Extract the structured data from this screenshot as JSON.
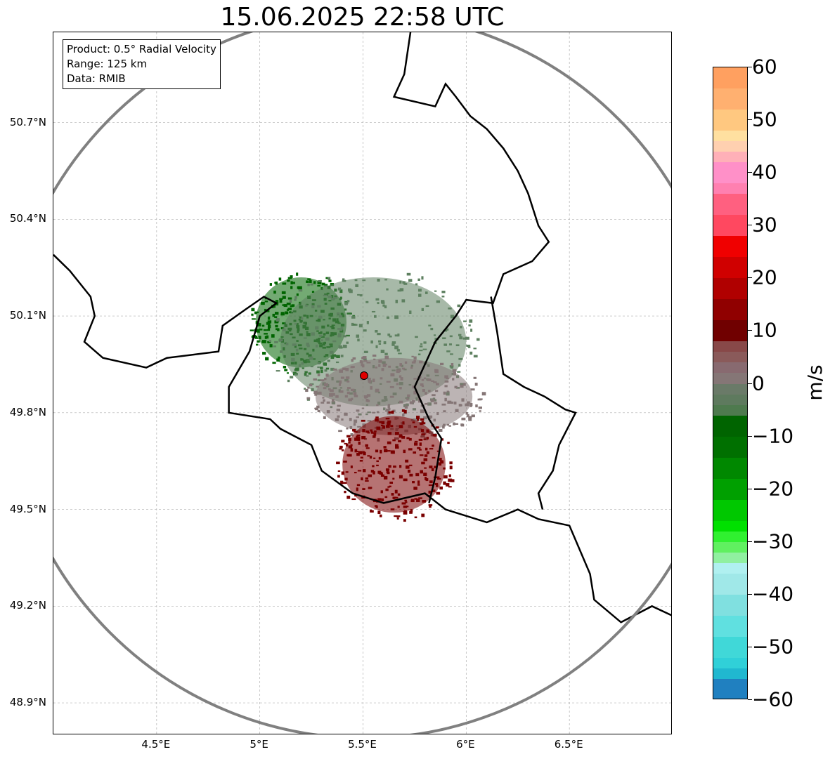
{
  "title": "15.06.2025 22:58 UTC",
  "info_box": {
    "product": "Product: 0.5° Radial Velocity",
    "range": "Range: 125 km",
    "data": "Data: RMIB"
  },
  "map": {
    "lon_range": [
      4.0,
      7.0
    ],
    "lat_range": [
      48.8,
      50.98
    ],
    "radar_site": {
      "lon": 5.505,
      "lat": 49.915
    },
    "range_ring_km": 125,
    "gridlines": true,
    "lat_ticks": [
      {
        "value": 50.7,
        "label": "50.7°N"
      },
      {
        "value": 50.4,
        "label": "50.4°N"
      },
      {
        "value": 50.1,
        "label": "50.1°N"
      },
      {
        "value": 49.8,
        "label": "49.8°N"
      },
      {
        "value": 49.5,
        "label": "49.5°N"
      },
      {
        "value": 49.2,
        "label": "49.2°N"
      },
      {
        "value": 48.9,
        "label": "48.9°N"
      }
    ],
    "lon_ticks": [
      {
        "value": 4.5,
        "label": "4.5°E"
      },
      {
        "value": 5.0,
        "label": "5°E"
      },
      {
        "value": 5.5,
        "label": "5.5°E"
      },
      {
        "value": 6.0,
        "label": "6°E"
      },
      {
        "value": 6.5,
        "label": "6.5°E"
      }
    ],
    "colors": {
      "border": "#000000",
      "ring": "#808080",
      "grid": "#b0b0b0",
      "site": "#e00000"
    },
    "echo_regions": [
      {
        "name": "inbound-strong",
        "lon": 5.2,
        "lat": 50.08,
        "rx": 0.22,
        "ry": 0.14,
        "color": "#006400"
      },
      {
        "name": "inbound-weak",
        "lon": 5.55,
        "lat": 50.02,
        "rx": 0.45,
        "ry": 0.2,
        "color": "#5e8060"
      },
      {
        "name": "near-zero",
        "lon": 5.65,
        "lat": 49.85,
        "rx": 0.38,
        "ry": 0.12,
        "color": "#857676"
      },
      {
        "name": "outbound-strong",
        "lon": 5.65,
        "lat": 49.64,
        "rx": 0.25,
        "ry": 0.15,
        "color": "#7a0000"
      }
    ]
  },
  "colorbar": {
    "label": "m/s",
    "min": -60,
    "max": 60,
    "ticks": [
      {
        "value": 60,
        "label": "60"
      },
      {
        "value": 50,
        "label": "50"
      },
      {
        "value": 40,
        "label": "40"
      },
      {
        "value": 30,
        "label": "30"
      },
      {
        "value": 20,
        "label": "20"
      },
      {
        "value": 10,
        "label": "10"
      },
      {
        "value": 0,
        "label": "0"
      },
      {
        "value": -10,
        "label": "−10"
      },
      {
        "value": -20,
        "label": "−20"
      },
      {
        "value": -30,
        "label": "−30"
      },
      {
        "value": -40,
        "label": "−40"
      },
      {
        "value": -50,
        "label": "−50"
      },
      {
        "value": -60,
        "label": "−60"
      }
    ],
    "segments": [
      {
        "from": 56,
        "to": 60,
        "color": "#ffa060"
      },
      {
        "from": 52,
        "to": 56,
        "color": "#ffb070"
      },
      {
        "from": 48,
        "to": 52,
        "color": "#ffc880"
      },
      {
        "from": 46,
        "to": 48,
        "color": "#ffe0a0"
      },
      {
        "from": 44,
        "to": 46,
        "color": "#ffd0b0"
      },
      {
        "from": 42,
        "to": 44,
        "color": "#ffb0b8"
      },
      {
        "from": 38,
        "to": 42,
        "color": "#ff90c8"
      },
      {
        "from": 36,
        "to": 38,
        "color": "#ff80b0"
      },
      {
        "from": 32,
        "to": 36,
        "color": "#ff6080"
      },
      {
        "from": 28,
        "to": 32,
        "color": "#ff4860"
      },
      {
        "from": 24,
        "to": 28,
        "color": "#f00000"
      },
      {
        "from": 20,
        "to": 24,
        "color": "#d00000"
      },
      {
        "from": 16,
        "to": 20,
        "color": "#b00000"
      },
      {
        "from": 12,
        "to": 16,
        "color": "#900000"
      },
      {
        "from": 8,
        "to": 12,
        "color": "#700000"
      },
      {
        "from": 6,
        "to": 8,
        "color": "#884848"
      },
      {
        "from": 4,
        "to": 6,
        "color": "#8a5a5a"
      },
      {
        "from": 2,
        "to": 4,
        "color": "#886a70"
      },
      {
        "from": 0,
        "to": 2,
        "color": "#857676"
      },
      {
        "from": -2,
        "to": 0,
        "color": "#6a7a68"
      },
      {
        "from": -4,
        "to": -2,
        "color": "#5e7a5e"
      },
      {
        "from": -6,
        "to": -4,
        "color": "#4e7a4e"
      },
      {
        "from": -10,
        "to": -6,
        "color": "#006400"
      },
      {
        "from": -14,
        "to": -10,
        "color": "#007000"
      },
      {
        "from": -18,
        "to": -14,
        "color": "#008800"
      },
      {
        "from": -22,
        "to": -18,
        "color": "#00a000"
      },
      {
        "from": -26,
        "to": -22,
        "color": "#00c800"
      },
      {
        "from": -28,
        "to": -26,
        "color": "#00e000"
      },
      {
        "from": -30,
        "to": -28,
        "color": "#30f030"
      },
      {
        "from": -32,
        "to": -30,
        "color": "#60f060"
      },
      {
        "from": -34,
        "to": -32,
        "color": "#90f0a0"
      },
      {
        "from": -36,
        "to": -34,
        "color": "#b0f0f0"
      },
      {
        "from": -40,
        "to": -36,
        "color": "#a0e8e8"
      },
      {
        "from": -44,
        "to": -40,
        "color": "#80e0e0"
      },
      {
        "from": -48,
        "to": -44,
        "color": "#60e0e0"
      },
      {
        "from": -52,
        "to": -48,
        "color": "#40d8d8"
      },
      {
        "from": -54,
        "to": -52,
        "color": "#30d0d8"
      },
      {
        "from": -56,
        "to": -54,
        "color": "#20b8d0"
      },
      {
        "from": -60,
        "to": -56,
        "color": "#2080c0"
      }
    ]
  }
}
